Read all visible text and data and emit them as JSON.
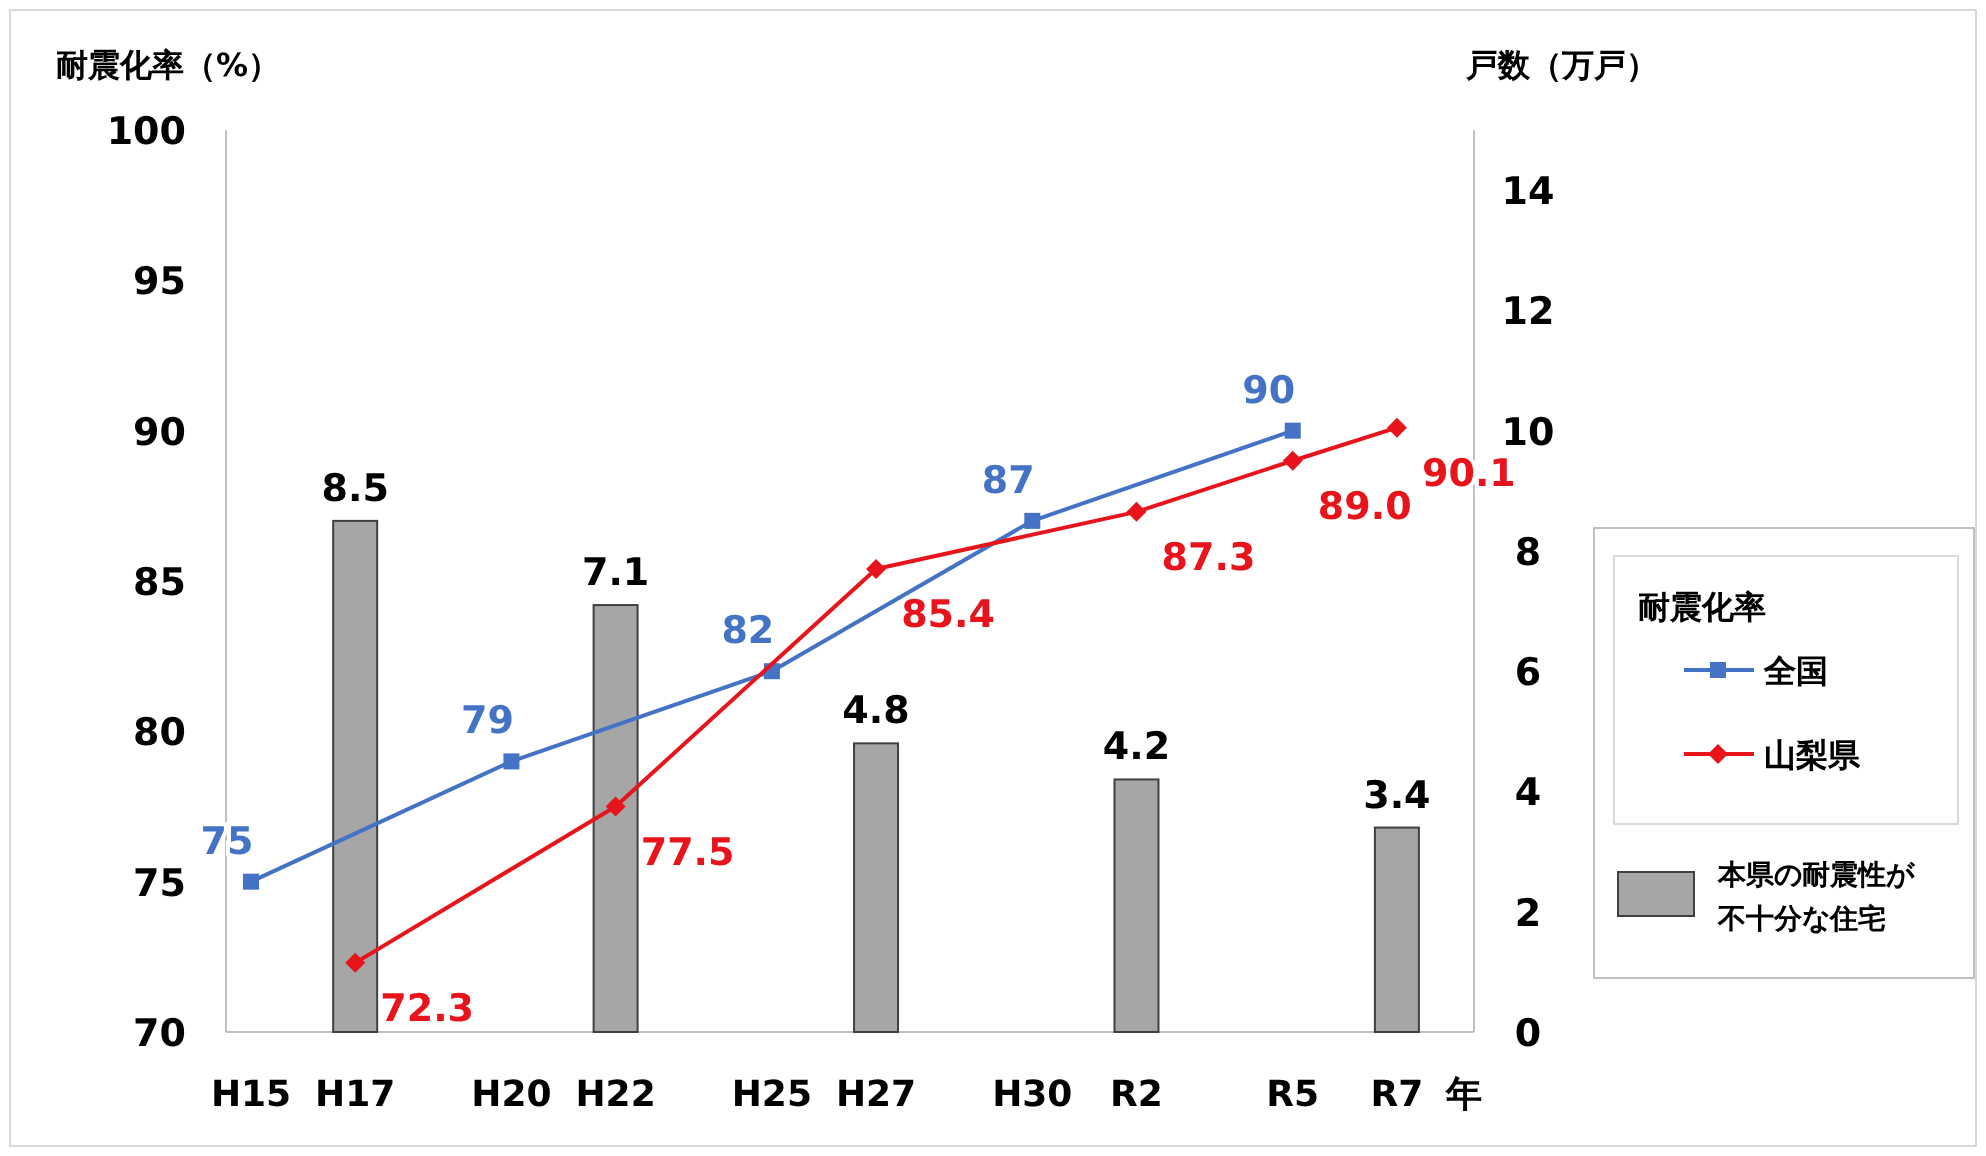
{
  "chart_data": {
    "type": "line",
    "ylabel": "耐震化率（%）",
    "y2label": "戸数（万戸）",
    "xlabel": "年",
    "legend_title": "耐震化率",
    "legend": "right",
    "categories": [
      "H15",
      null,
      "H17",
      null,
      null,
      "H20",
      null,
      "H22",
      null,
      null,
      "H25",
      null,
      "H27",
      null,
      null,
      "H30",
      null,
      "R2",
      null,
      null,
      "R5",
      null,
      "R7"
    ],
    "ylim": [
      70,
      100
    ],
    "yticks": [
      70,
      75,
      80,
      85,
      90,
      95,
      100
    ],
    "y2lim": [
      0,
      15
    ],
    "y2ticks": [
      0,
      2,
      4,
      6,
      8,
      10,
      12,
      14
    ],
    "series": [
      {
        "name": "本県の耐震性が不十分な住宅",
        "type": "bar",
        "axis": "y2",
        "color": "#a6a6a6",
        "values": [
          null,
          null,
          8.5,
          null,
          null,
          null,
          null,
          7.1,
          null,
          null,
          null,
          null,
          4.8,
          null,
          null,
          null,
          null,
          4.2,
          null,
          null,
          null,
          null,
          3.4
        ],
        "value_labels": [
          null,
          null,
          "8.5",
          null,
          null,
          null,
          null,
          "7.1",
          null,
          null,
          null,
          null,
          "4.8",
          null,
          null,
          null,
          null,
          "4.2",
          null,
          null,
          null,
          null,
          "3.4"
        ]
      },
      {
        "name": "全国",
        "marker": "square",
        "color": "#4472c4",
        "values": [
          75,
          null,
          null,
          null,
          null,
          79,
          null,
          null,
          null,
          null,
          82,
          null,
          null,
          null,
          null,
          87,
          null,
          null,
          null,
          null,
          90,
          null,
          null
        ],
        "value_labels": [
          "75",
          null,
          null,
          null,
          null,
          "79",
          null,
          null,
          null,
          null,
          "82",
          null,
          null,
          null,
          null,
          "87",
          null,
          null,
          null,
          null,
          "90",
          null,
          null
        ]
      },
      {
        "name": "山梨県",
        "marker": "diamond",
        "color": "#e8141c",
        "values": [
          null,
          null,
          72.3,
          null,
          null,
          null,
          null,
          77.5,
          null,
          null,
          null,
          null,
          85.4,
          null,
          null,
          null,
          null,
          87.3,
          null,
          null,
          89.0,
          null,
          90.1
        ],
        "value_labels": [
          null,
          null,
          "72.3",
          null,
          null,
          null,
          null,
          "77.5",
          null,
          null,
          null,
          null,
          "85.4",
          null,
          null,
          null,
          null,
          "87.3",
          null,
          null,
          "89.0",
          null,
          "90.1"
        ]
      }
    ]
  }
}
